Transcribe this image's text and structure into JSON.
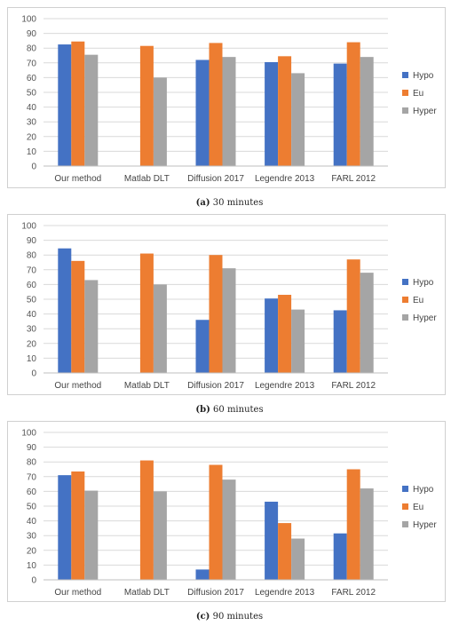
{
  "colors": {
    "Hypo": "#4472C4",
    "Eu": "#ED7D31",
    "Hyper": "#A5A5A5",
    "grid": "#d9d9d9"
  },
  "chart_data": [
    {
      "type": "bar",
      "categories": [
        "Our method",
        "Matlab DLT",
        "Diffusion 2017",
        "Legendre 2013",
        "FARL 2012"
      ],
      "series": [
        {
          "name": "Hypo",
          "values": [
            82.5,
            0,
            72,
            70.5,
            69.5
          ]
        },
        {
          "name": "Eu",
          "values": [
            84.5,
            81.5,
            83.5,
            74.5,
            84
          ]
        },
        {
          "name": "Hyper",
          "values": [
            75.5,
            60,
            74,
            63,
            74
          ]
        }
      ],
      "ylim": [
        0,
        100
      ],
      "yticks": [
        "0",
        "10",
        "20",
        "30",
        "40",
        "50",
        "60",
        "70",
        "80",
        "90",
        "100"
      ],
      "legend": "right",
      "grid": true,
      "caption_label": "(a)",
      "caption_text": "30 minutes"
    },
    {
      "type": "bar",
      "categories": [
        "Our method",
        "Matlab DLT",
        "Diffusion 2017",
        "Legendre 2013",
        "FARL 2012"
      ],
      "series": [
        {
          "name": "Hypo",
          "values": [
            84.5,
            0,
            36,
            50.5,
            42.5
          ]
        },
        {
          "name": "Eu",
          "values": [
            76,
            81,
            80,
            53,
            77
          ]
        },
        {
          "name": "Hyper",
          "values": [
            63,
            60,
            71,
            43,
            68
          ]
        }
      ],
      "ylim": [
        0,
        100
      ],
      "yticks": [
        "0",
        "10",
        "20",
        "30",
        "40",
        "50",
        "60",
        "70",
        "80",
        "90",
        "100"
      ],
      "legend": "right",
      "grid": true,
      "caption_label": "(b)",
      "caption_text": "60 minutes"
    },
    {
      "type": "bar",
      "categories": [
        "Our method",
        "Matlab DLT",
        "Diffusion 2017",
        "Legendre 2013",
        "FARL 2012"
      ],
      "series": [
        {
          "name": "Hypo",
          "values": [
            71,
            0,
            7,
            53,
            31.5
          ]
        },
        {
          "name": "Eu",
          "values": [
            73.5,
            81,
            78,
            38.5,
            75
          ]
        },
        {
          "name": "Hyper",
          "values": [
            60.5,
            60,
            68,
            28,
            62
          ]
        }
      ],
      "ylim": [
        0,
        100
      ],
      "yticks": [
        "0",
        "10",
        "20",
        "30",
        "40",
        "50",
        "60",
        "70",
        "80",
        "90",
        "100"
      ],
      "legend": "right",
      "grid": true,
      "caption_label": "(c)",
      "caption_text": "90 minutes"
    }
  ]
}
